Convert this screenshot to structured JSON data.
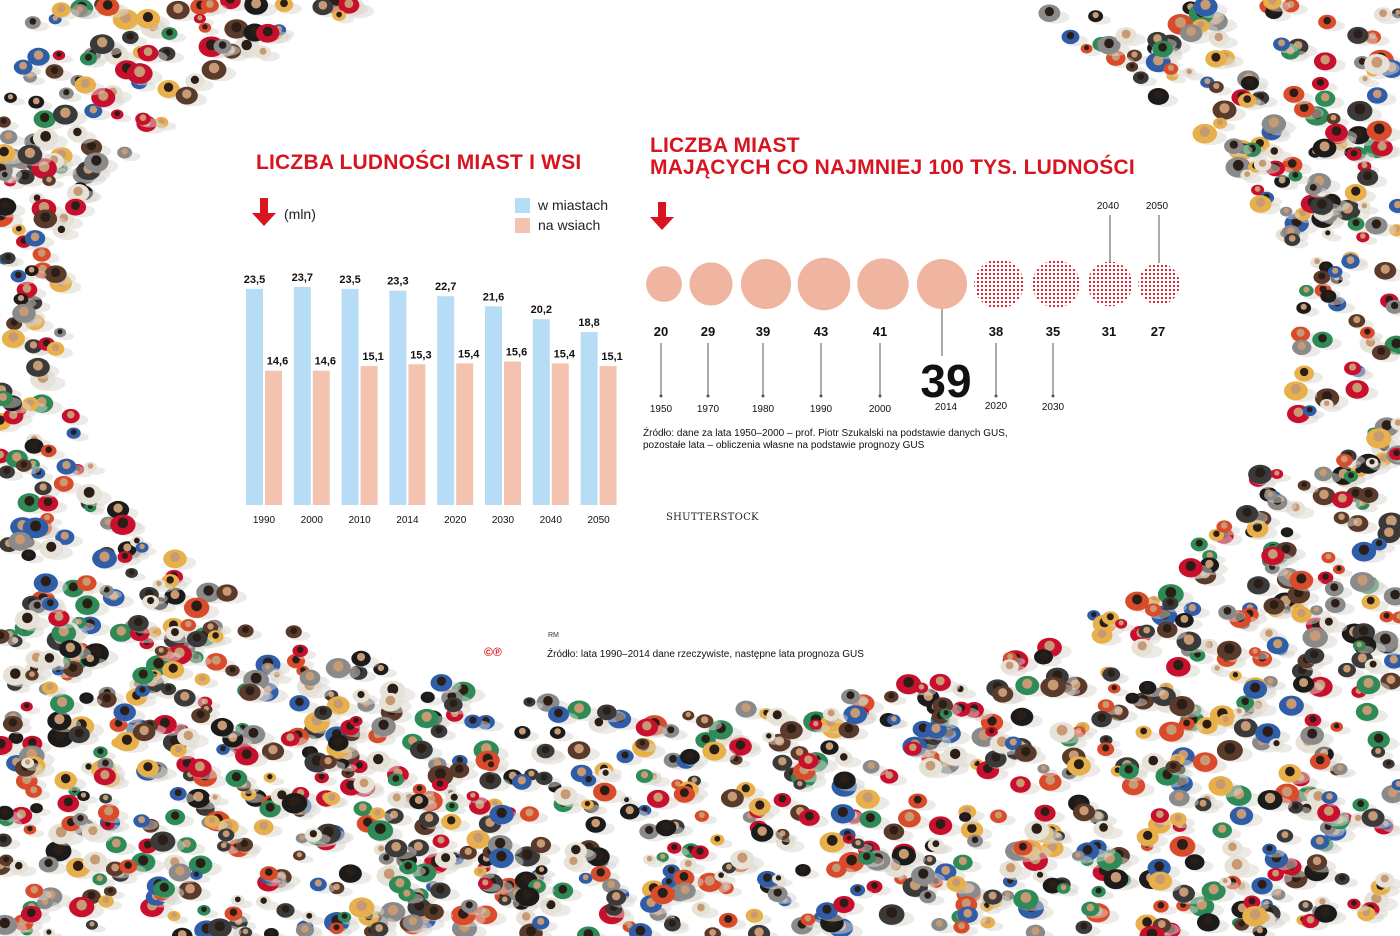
{
  "colors": {
    "accent_red": "#d7141f",
    "urban_blue": "#b7dcf5",
    "rural_pink": "#f3c3b0",
    "circle_pink": "#efb5a0",
    "forecast_dots": "#d7141f"
  },
  "left": {
    "title": "LICZBA LUDNOŚCI MIAST I WSI",
    "unit": "(mln)",
    "arrow_icon": "down-arrow-icon",
    "legend": [
      "w miastach",
      "na wsiach"
    ],
    "source": "Źródło: lata 1990–2014 dane rzeczywiste, następne lata prognoza GUS",
    "author": "RM",
    "logo": "©℗"
  },
  "right": {
    "title_lines": [
      "LICZBA MIAST",
      "MAJĄCYCH CO NAJMNIEJ 100 TYS. LUDNOŚCI"
    ],
    "arrow_icon": "down-arrow-icon",
    "source_lines": [
      "Źródło: dane za lata 1950–2000 – prof. Piotr Szukalski na podstawie danych GUS,",
      "pozostałe lata – obliczenia własne na podstawie prognozy GUS"
    ],
    "photo_credit": "SHUTTERSTOCK"
  },
  "chart_data": [
    {
      "type": "bar",
      "title": "LICZBA LUDNOŚCI MIAST I WSI",
      "ylabel": "(mln)",
      "categories": [
        "1990",
        "2000",
        "2010",
        "2014",
        "2020",
        "2030",
        "2040",
        "2050"
      ],
      "series": [
        {
          "name": "w miastach",
          "values": [
            23.5,
            23.7,
            23.5,
            23.3,
            22.7,
            21.6,
            20.2,
            18.8
          ],
          "labels": [
            "23,5",
            "23,7",
            "23,5",
            "23,3",
            "22,7",
            "21,6",
            "20,2",
            "18,8"
          ]
        },
        {
          "name": "na wsiach",
          "values": [
            14.6,
            14.6,
            15.1,
            15.3,
            15.4,
            15.6,
            15.4,
            15.1
          ],
          "labels": [
            "14,6",
            "14,6",
            "15,1",
            "15,3",
            "15,4",
            "15,6",
            "15,4",
            "15,1"
          ]
        }
      ],
      "ylim": [
        0,
        23.7
      ],
      "legend": "top-right",
      "grid": false
    },
    {
      "type": "bubble",
      "title": "LICZBA MIAST MAJĄCYCH CO NAJMNIEJ 100 TYS. LUDNOŚCI",
      "categories": [
        "1950",
        "1970",
        "1980",
        "1990",
        "2000",
        "2014",
        "2020",
        "2030",
        "2040",
        "2050"
      ],
      "values": [
        20,
        29,
        39,
        43,
        41,
        39,
        38,
        35,
        31,
        27
      ],
      "labels": [
        "20",
        "29",
        "39",
        "43",
        "41",
        "39",
        "38",
        "35",
        "31",
        "27"
      ],
      "forecast": [
        false,
        false,
        false,
        false,
        false,
        false,
        true,
        true,
        true,
        true
      ],
      "highlight": "2014",
      "grid": false
    }
  ]
}
